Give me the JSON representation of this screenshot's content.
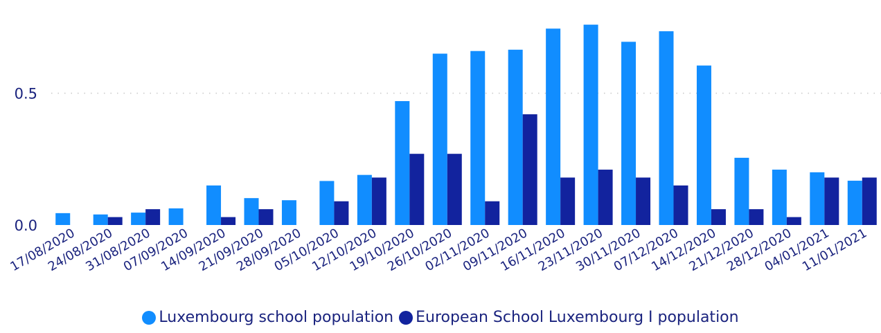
{
  "chart_data": {
    "type": "bar",
    "categories": [
      "17/08/2020",
      "24/08/2020",
      "31/08/2020",
      "07/09/2020",
      "14/09/2020",
      "21/09/2020",
      "28/09/2020",
      "05/10/2020",
      "12/10/2020",
      "19/10/2020",
      "26/10/2020",
      "02/11/2020",
      "09/11/2020",
      "16/11/2020",
      "23/11/2020",
      "30/11/2020",
      "07/12/2020",
      "14/12/2020",
      "21/12/2020",
      "28/12/2020",
      "04/01/2021",
      "11/01/2021"
    ],
    "series": [
      {
        "name": "Luxembourg school population",
        "color": "#118DFF",
        "values": [
          0.045,
          0.04,
          0.047,
          0.063,
          0.15,
          0.102,
          0.094,
          0.167,
          0.19,
          0.47,
          0.65,
          0.66,
          0.665,
          0.745,
          0.76,
          0.695,
          0.735,
          0.605,
          0.255,
          0.21,
          0.2,
          0.168
        ]
      },
      {
        "name": "European School Luxembourg I population",
        "color": "#12239E",
        "values": [
          0,
          0.03,
          0.06,
          0,
          0.03,
          0.06,
          0,
          0.09,
          0.18,
          0.27,
          0.27,
          0.09,
          0.42,
          0.18,
          0.21,
          0.18,
          0.15,
          0.06,
          0.06,
          0.03,
          0.18,
          0.18
        ]
      }
    ],
    "yticks": [
      {
        "value": 0.0,
        "label": "0.0"
      },
      {
        "value": 0.5,
        "label": "0.5"
      }
    ],
    "title": "",
    "xlabel": "",
    "ylabel": "",
    "ylim": [
      0,
      0.78
    ],
    "grid": "horizontal dotted",
    "legend_position": "bottom-center"
  }
}
